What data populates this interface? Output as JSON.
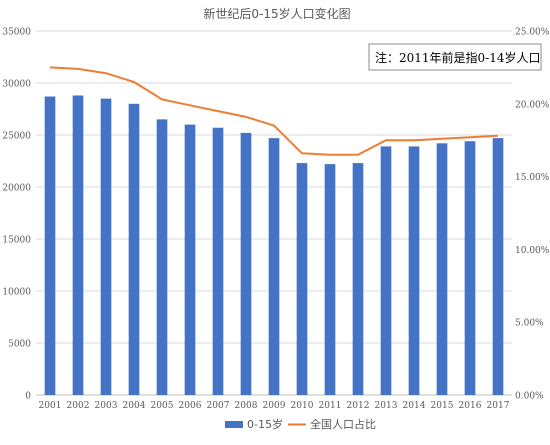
{
  "chart_data": {
    "type": "bar",
    "title": "新世纪后0-15岁人口变化图",
    "annotation": "注：2011年前是指0-14岁人口",
    "categories": [
      "2001",
      "2002",
      "2003",
      "2004",
      "2005",
      "2006",
      "2007",
      "2008",
      "2009",
      "2010",
      "2011",
      "2012",
      "2013",
      "2014",
      "2015",
      "2016",
      "2017"
    ],
    "series": [
      {
        "name": "0-15岁",
        "type": "bar",
        "axis": "left",
        "color": "#4472c4",
        "values": [
          28700,
          28800,
          28500,
          28000,
          26500,
          26000,
          25700,
          25200,
          24700,
          22300,
          22200,
          22300,
          23900,
          23900,
          24200,
          24400,
          24700
        ]
      },
      {
        "name": "全国人口占比",
        "type": "line",
        "axis": "right",
        "color": "#ed7d31",
        "values": [
          22.5,
          22.4,
          22.1,
          21.5,
          20.3,
          19.9,
          19.5,
          19.1,
          18.5,
          16.6,
          16.5,
          16.5,
          17.5,
          17.5,
          17.6,
          17.7,
          17.8
        ]
      }
    ],
    "y_left": {
      "min": 0,
      "max": 35000,
      "ticks": [
        "0",
        "5000",
        "10000",
        "15000",
        "20000",
        "25000",
        "30000",
        "35000"
      ]
    },
    "y_right": {
      "min": 0,
      "max": 25,
      "ticks": [
        "0.00%",
        "5.00%",
        "10.00%",
        "15.00%",
        "20.00%",
        "25.00%"
      ]
    },
    "grid": true,
    "legend": "bottom",
    "xlabel": "",
    "ylabel": ""
  }
}
